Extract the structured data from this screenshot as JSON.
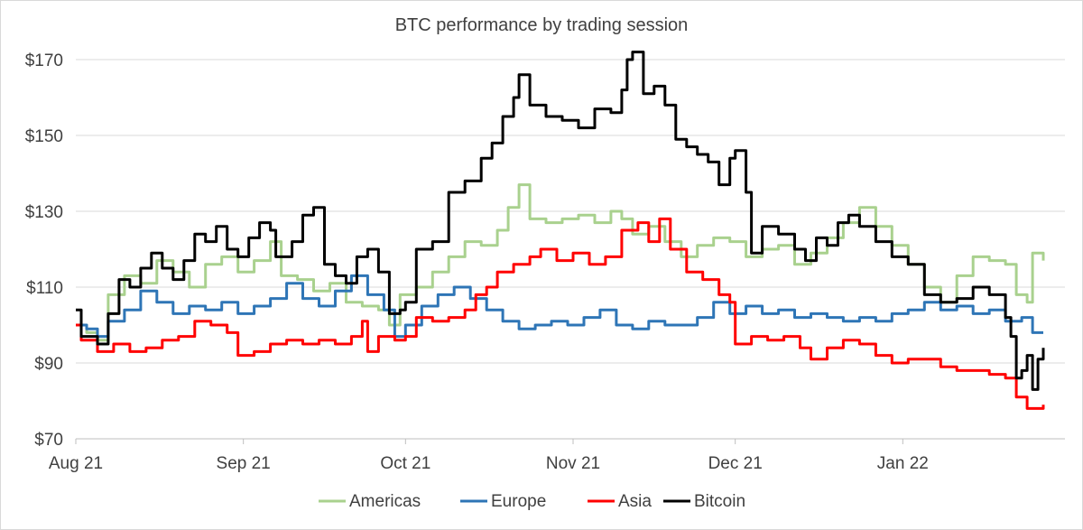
{
  "chart_data": {
    "type": "line",
    "title": "BTC performance by trading session",
    "xlabel": "",
    "ylabel": "",
    "x_ticks": [
      "Aug 21",
      "Sep 21",
      "Oct 21",
      "Nov 21",
      "Dec 21",
      "Jan 22"
    ],
    "y_ticks": [
      "$70",
      "$90",
      "$110",
      "$130",
      "$150",
      "$170"
    ],
    "ylim": [
      70,
      170
    ],
    "xlim": [
      "2021-08-01",
      "2022-01-31"
    ],
    "grid": "horizontal",
    "legend_position": "bottom",
    "step": true,
    "series": [
      {
        "name": "Americas",
        "color": "#a9d18e",
        "points": [
          [
            "2021-08-01",
            100
          ],
          [
            "2021-08-03",
            98
          ],
          [
            "2021-08-05",
            96
          ],
          [
            "2021-08-07",
            108
          ],
          [
            "2021-08-10",
            113
          ],
          [
            "2021-08-13",
            111
          ],
          [
            "2021-08-16",
            117
          ],
          [
            "2021-08-19",
            114
          ],
          [
            "2021-08-22",
            110
          ],
          [
            "2021-08-25",
            116
          ],
          [
            "2021-08-28",
            118
          ],
          [
            "2021-08-31",
            114
          ],
          [
            "2021-09-03",
            117
          ],
          [
            "2021-09-06",
            122
          ],
          [
            "2021-09-08",
            113
          ],
          [
            "2021-09-11",
            112
          ],
          [
            "2021-09-14",
            109
          ],
          [
            "2021-09-17",
            111
          ],
          [
            "2021-09-20",
            106
          ],
          [
            "2021-09-23",
            105
          ],
          [
            "2021-09-26",
            104
          ],
          [
            "2021-09-28",
            100
          ],
          [
            "2021-09-30",
            108
          ],
          [
            "2021-10-03",
            110
          ],
          [
            "2021-10-06",
            114
          ],
          [
            "2021-10-09",
            118
          ],
          [
            "2021-10-12",
            122
          ],
          [
            "2021-10-15",
            121
          ],
          [
            "2021-10-18",
            125
          ],
          [
            "2021-10-20",
            131
          ],
          [
            "2021-10-22",
            137
          ],
          [
            "2021-10-24",
            128
          ],
          [
            "2021-10-27",
            127
          ],
          [
            "2021-10-30",
            128
          ],
          [
            "2021-11-02",
            129
          ],
          [
            "2021-11-05",
            127
          ],
          [
            "2021-11-08",
            130
          ],
          [
            "2021-11-10",
            128
          ],
          [
            "2021-11-12",
            124
          ],
          [
            "2021-11-15",
            126
          ],
          [
            "2021-11-18",
            122
          ],
          [
            "2021-11-21",
            118
          ],
          [
            "2021-11-24",
            121
          ],
          [
            "2021-11-27",
            123
          ],
          [
            "2021-11-30",
            122
          ],
          [
            "2021-12-03",
            118
          ],
          [
            "2021-12-06",
            120
          ],
          [
            "2021-12-09",
            121
          ],
          [
            "2021-12-12",
            116
          ],
          [
            "2021-12-15",
            119
          ],
          [
            "2021-12-18",
            123
          ],
          [
            "2021-12-21",
            127
          ],
          [
            "2021-12-24",
            131
          ],
          [
            "2021-12-27",
            126
          ],
          [
            "2021-12-30",
            121
          ],
          [
            "2022-01-02",
            116
          ],
          [
            "2022-01-05",
            110
          ],
          [
            "2022-01-08",
            106
          ],
          [
            "2022-01-11",
            113
          ],
          [
            "2022-01-14",
            118
          ],
          [
            "2022-01-17",
            117
          ],
          [
            "2022-01-20",
            116
          ],
          [
            "2022-01-22",
            108
          ],
          [
            "2022-01-24",
            106
          ],
          [
            "2022-01-25",
            119
          ],
          [
            "2022-01-27",
            117
          ]
        ]
      },
      {
        "name": "Europe",
        "color": "#2e75b6",
        "points": [
          [
            "2021-08-01",
            100
          ],
          [
            "2021-08-03",
            99
          ],
          [
            "2021-08-05",
            97
          ],
          [
            "2021-08-07",
            101
          ],
          [
            "2021-08-10",
            104
          ],
          [
            "2021-08-13",
            109
          ],
          [
            "2021-08-16",
            106
          ],
          [
            "2021-08-19",
            103
          ],
          [
            "2021-08-22",
            105
          ],
          [
            "2021-08-25",
            104
          ],
          [
            "2021-08-28",
            106
          ],
          [
            "2021-08-31",
            103
          ],
          [
            "2021-09-03",
            105
          ],
          [
            "2021-09-06",
            107
          ],
          [
            "2021-09-09",
            111
          ],
          [
            "2021-09-12",
            107
          ],
          [
            "2021-09-15",
            105
          ],
          [
            "2021-09-18",
            109
          ],
          [
            "2021-09-21",
            113
          ],
          [
            "2021-09-24",
            108
          ],
          [
            "2021-09-27",
            104
          ],
          [
            "2021-09-29",
            97
          ],
          [
            "2021-10-01",
            100
          ],
          [
            "2021-10-04",
            105
          ],
          [
            "2021-10-07",
            108
          ],
          [
            "2021-10-10",
            110
          ],
          [
            "2021-10-13",
            107
          ],
          [
            "2021-10-16",
            104
          ],
          [
            "2021-10-19",
            101
          ],
          [
            "2021-10-22",
            99
          ],
          [
            "2021-10-25",
            100
          ],
          [
            "2021-10-28",
            101
          ],
          [
            "2021-10-31",
            100
          ],
          [
            "2021-11-03",
            102
          ],
          [
            "2021-11-06",
            104
          ],
          [
            "2021-11-09",
            100
          ],
          [
            "2021-11-12",
            99
          ],
          [
            "2021-11-15",
            101
          ],
          [
            "2021-11-18",
            100
          ],
          [
            "2021-11-21",
            100
          ],
          [
            "2021-11-24",
            102
          ],
          [
            "2021-11-27",
            106
          ],
          [
            "2021-11-30",
            103
          ],
          [
            "2021-12-03",
            105
          ],
          [
            "2021-12-06",
            103
          ],
          [
            "2021-12-09",
            104
          ],
          [
            "2021-12-12",
            102
          ],
          [
            "2021-12-15",
            103
          ],
          [
            "2021-12-18",
            102
          ],
          [
            "2021-12-21",
            101
          ],
          [
            "2021-12-24",
            102
          ],
          [
            "2021-12-27",
            101
          ],
          [
            "2021-12-30",
            103
          ],
          [
            "2022-01-02",
            104
          ],
          [
            "2022-01-05",
            106
          ],
          [
            "2022-01-08",
            104
          ],
          [
            "2022-01-11",
            105
          ],
          [
            "2022-01-14",
            103
          ],
          [
            "2022-01-17",
            104
          ],
          [
            "2022-01-20",
            101
          ],
          [
            "2022-01-23",
            102
          ],
          [
            "2022-01-25",
            98
          ],
          [
            "2022-01-27",
            98
          ]
        ]
      },
      {
        "name": "Asia",
        "color": "#ff0000",
        "points": [
          [
            "2021-08-01",
            100
          ],
          [
            "2021-08-02",
            96
          ],
          [
            "2021-08-05",
            93
          ],
          [
            "2021-08-08",
            95
          ],
          [
            "2021-08-11",
            93
          ],
          [
            "2021-08-14",
            94
          ],
          [
            "2021-08-17",
            96
          ],
          [
            "2021-08-20",
            97
          ],
          [
            "2021-08-23",
            101
          ],
          [
            "2021-08-26",
            100
          ],
          [
            "2021-08-29",
            98
          ],
          [
            "2021-08-31",
            92
          ],
          [
            "2021-09-03",
            93
          ],
          [
            "2021-09-06",
            95
          ],
          [
            "2021-09-09",
            96
          ],
          [
            "2021-09-12",
            95
          ],
          [
            "2021-09-15",
            96
          ],
          [
            "2021-09-18",
            95
          ],
          [
            "2021-09-21",
            97
          ],
          [
            "2021-09-23",
            101
          ],
          [
            "2021-09-24",
            93
          ],
          [
            "2021-09-26",
            97
          ],
          [
            "2021-09-29",
            96
          ],
          [
            "2021-10-01",
            97
          ],
          [
            "2021-10-03",
            102
          ],
          [
            "2021-10-06",
            101
          ],
          [
            "2021-10-09",
            102
          ],
          [
            "2021-10-12",
            104
          ],
          [
            "2021-10-14",
            108
          ],
          [
            "2021-10-16",
            110
          ],
          [
            "2021-10-18",
            114
          ],
          [
            "2021-10-21",
            116
          ],
          [
            "2021-10-24",
            118
          ],
          [
            "2021-10-26",
            120
          ],
          [
            "2021-10-29",
            117
          ],
          [
            "2021-11-01",
            119
          ],
          [
            "2021-11-04",
            116
          ],
          [
            "2021-11-07",
            118
          ],
          [
            "2021-11-10",
            125
          ],
          [
            "2021-11-13",
            127
          ],
          [
            "2021-11-15",
            122
          ],
          [
            "2021-11-17",
            128
          ],
          [
            "2021-11-19",
            120
          ],
          [
            "2021-11-22",
            114
          ],
          [
            "2021-11-25",
            112
          ],
          [
            "2021-11-28",
            108
          ],
          [
            "2021-11-30",
            106
          ],
          [
            "2021-12-01",
            95
          ],
          [
            "2021-12-04",
            97
          ],
          [
            "2021-12-07",
            96
          ],
          [
            "2021-12-10",
            97
          ],
          [
            "2021-12-13",
            94
          ],
          [
            "2021-12-15",
            91
          ],
          [
            "2021-12-18",
            94
          ],
          [
            "2021-12-21",
            96
          ],
          [
            "2021-12-24",
            95
          ],
          [
            "2021-12-27",
            92
          ],
          [
            "2021-12-30",
            90
          ],
          [
            "2022-01-02",
            91
          ],
          [
            "2022-01-05",
            91
          ],
          [
            "2022-01-08",
            89
          ],
          [
            "2022-01-11",
            88
          ],
          [
            "2022-01-14",
            88
          ],
          [
            "2022-01-17",
            87
          ],
          [
            "2022-01-20",
            86
          ],
          [
            "2022-01-22",
            81
          ],
          [
            "2022-01-24",
            78
          ],
          [
            "2022-01-27",
            79
          ]
        ]
      },
      {
        "name": "Bitcoin",
        "color": "#000000",
        "points": [
          [
            "2021-08-01",
            104
          ],
          [
            "2021-08-02",
            97
          ],
          [
            "2021-08-05",
            95
          ],
          [
            "2021-08-07",
            103
          ],
          [
            "2021-08-09",
            112
          ],
          [
            "2021-08-11",
            110
          ],
          [
            "2021-08-13",
            115
          ],
          [
            "2021-08-15",
            119
          ],
          [
            "2021-08-17",
            115
          ],
          [
            "2021-08-19",
            112
          ],
          [
            "2021-08-21",
            117
          ],
          [
            "2021-08-23",
            124
          ],
          [
            "2021-08-25",
            122
          ],
          [
            "2021-08-27",
            126
          ],
          [
            "2021-08-29",
            120
          ],
          [
            "2021-08-31",
            118
          ],
          [
            "2021-09-02",
            123
          ],
          [
            "2021-09-04",
            127
          ],
          [
            "2021-09-06",
            125
          ],
          [
            "2021-09-07",
            118
          ],
          [
            "2021-09-10",
            122
          ],
          [
            "2021-09-12",
            129
          ],
          [
            "2021-09-14",
            131
          ],
          [
            "2021-09-16",
            116
          ],
          [
            "2021-09-18",
            113
          ],
          [
            "2021-09-20",
            111
          ],
          [
            "2021-09-22",
            118
          ],
          [
            "2021-09-24",
            120
          ],
          [
            "2021-09-26",
            114
          ],
          [
            "2021-09-28",
            103
          ],
          [
            "2021-09-30",
            104
          ],
          [
            "2021-10-01",
            106
          ],
          [
            "2021-10-03",
            120
          ],
          [
            "2021-10-06",
            122
          ],
          [
            "2021-10-09",
            135
          ],
          [
            "2021-10-12",
            138
          ],
          [
            "2021-10-15",
            144
          ],
          [
            "2021-10-17",
            148
          ],
          [
            "2021-10-19",
            155
          ],
          [
            "2021-10-21",
            160
          ],
          [
            "2021-10-22",
            166
          ],
          [
            "2021-10-24",
            158
          ],
          [
            "2021-10-27",
            155
          ],
          [
            "2021-10-30",
            154
          ],
          [
            "2021-11-02",
            152
          ],
          [
            "2021-11-05",
            157
          ],
          [
            "2021-11-08",
            156
          ],
          [
            "2021-11-10",
            162
          ],
          [
            "2021-11-11",
            170
          ],
          [
            "2021-11-12",
            172
          ],
          [
            "2021-11-14",
            161
          ],
          [
            "2021-11-16",
            163
          ],
          [
            "2021-11-18",
            158
          ],
          [
            "2021-11-20",
            149
          ],
          [
            "2021-11-22",
            147
          ],
          [
            "2021-11-24",
            145
          ],
          [
            "2021-11-26",
            143
          ],
          [
            "2021-11-28",
            137
          ],
          [
            "2021-11-30",
            144
          ],
          [
            "2021-12-01",
            146
          ],
          [
            "2021-12-03",
            135
          ],
          [
            "2021-12-04",
            119
          ],
          [
            "2021-12-06",
            126
          ],
          [
            "2021-12-09",
            124
          ],
          [
            "2021-12-12",
            120
          ],
          [
            "2021-12-14",
            117
          ],
          [
            "2021-12-16",
            123
          ],
          [
            "2021-12-18",
            121
          ],
          [
            "2021-12-20",
            127
          ],
          [
            "2021-12-22",
            129
          ],
          [
            "2021-12-24",
            126
          ],
          [
            "2021-12-27",
            122
          ],
          [
            "2021-12-30",
            118
          ],
          [
            "2022-01-02",
            116
          ],
          [
            "2022-01-05",
            108
          ],
          [
            "2022-01-08",
            106
          ],
          [
            "2022-01-11",
            107
          ],
          [
            "2022-01-14",
            110
          ],
          [
            "2022-01-17",
            108
          ],
          [
            "2022-01-20",
            102
          ],
          [
            "2022-01-21",
            97
          ],
          [
            "2022-01-22",
            86
          ],
          [
            "2022-01-23",
            88
          ],
          [
            "2022-01-24",
            92
          ],
          [
            "2022-01-25",
            83
          ],
          [
            "2022-01-26",
            91
          ],
          [
            "2022-01-27",
            94
          ]
        ]
      }
    ]
  }
}
